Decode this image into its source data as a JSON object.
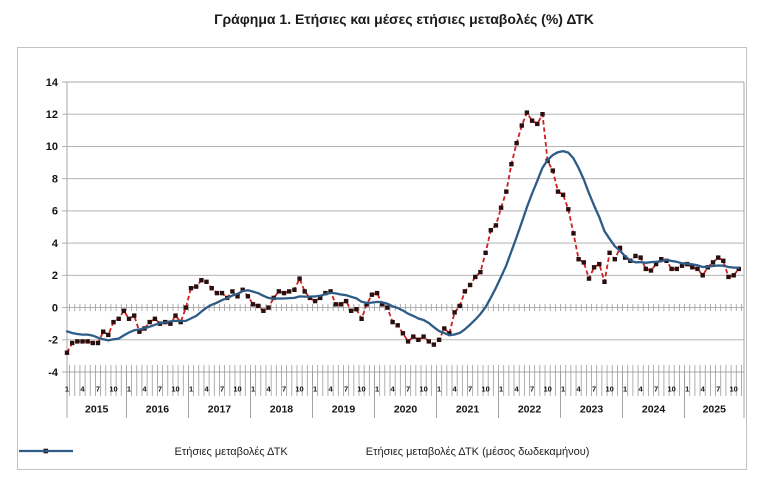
{
  "chart_data": {
    "type": "line",
    "title": "Γράφημα 1. Ετήσιες και μέσες ετήσιες μεταβολές (%) ΔΤΚ",
    "x_start": "2015-01",
    "x_end": "2025-11",
    "years": [
      "2015",
      "2016",
      "2017",
      "2018",
      "2019",
      "2020",
      "2021",
      "2022",
      "2023",
      "2024",
      "2025"
    ],
    "month_tick_labels": [
      "1",
      "4",
      "7",
      "10"
    ],
    "months_per_year": 12,
    "ylim": [
      -4,
      14
    ],
    "ytick_step": 2,
    "grid": true,
    "legend_position": "bottom",
    "series": [
      {
        "name": "Ετήσιες μεταβολές ΔΤΚ",
        "color": "#cf1f1f",
        "line_style": "dashed",
        "marker": "square",
        "marker_color": "#2b0e0e",
        "values": [
          -2.8,
          -2.2,
          -2.1,
          -2.1,
          -2.1,
          -2.2,
          -2.2,
          -1.5,
          -1.7,
          -0.9,
          -0.7,
          -0.2,
          -0.7,
          -0.5,
          -1.5,
          -1.3,
          -0.9,
          -0.7,
          -1.0,
          -0.9,
          -1.0,
          -0.5,
          -0.9,
          0.0,
          1.2,
          1.3,
          1.7,
          1.6,
          1.2,
          0.9,
          0.9,
          0.6,
          1.0,
          0.7,
          1.1,
          0.7,
          0.2,
          0.1,
          -0.2,
          0.0,
          0.6,
          1.0,
          0.9,
          1.0,
          1.1,
          1.8,
          1.0,
          0.6,
          0.4,
          0.6,
          0.9,
          1.0,
          0.2,
          0.2,
          0.4,
          -0.2,
          -0.1,
          -0.7,
          0.2,
          0.8,
          0.9,
          0.2,
          0.0,
          -0.9,
          -1.1,
          -1.6,
          -2.1,
          -1.8,
          -2.0,
          -1.8,
          -2.1,
          -2.3,
          -2.0,
          -1.3,
          -1.6,
          -0.3,
          0.1,
          1.0,
          1.4,
          1.9,
          2.2,
          3.4,
          4.8,
          5.1,
          6.2,
          7.2,
          8.9,
          10.2,
          11.3,
          12.1,
          11.6,
          11.4,
          12.0,
          9.1,
          8.5,
          7.2,
          7.0,
          6.1,
          4.6,
          3.0,
          2.8,
          1.8,
          2.5,
          2.7,
          1.6,
          3.4,
          3.0,
          3.7,
          3.1,
          2.9,
          3.2,
          3.1,
          2.4,
          2.3,
          2.7,
          3.0,
          2.9,
          2.4,
          2.4,
          2.6,
          2.7,
          2.5,
          2.4,
          2.0,
          2.5,
          2.8,
          3.1,
          2.9,
          1.9,
          2.0,
          2.4
        ]
      },
      {
        "name": "Ετήσιες μεταβολές ΔΤΚ (μέσος δωδεκαμήνου)",
        "color": "#2e5c87",
        "line_style": "solid",
        "values": [
          -1.48,
          -1.58,
          -1.64,
          -1.68,
          -1.68,
          -1.74,
          -1.87,
          -1.97,
          -2.04,
          -1.97,
          -1.93,
          -1.73,
          -1.55,
          -1.41,
          -1.36,
          -1.29,
          -1.19,
          -1.07,
          -0.97,
          -0.92,
          -0.86,
          -0.83,
          -0.84,
          -0.83,
          -0.67,
          -0.52,
          -0.25,
          -0.01,
          0.17,
          0.3,
          0.46,
          0.58,
          0.75,
          0.85,
          1.02,
          1.08,
          0.99,
          0.89,
          0.73,
          0.6,
          0.55,
          0.56,
          0.56,
          0.59,
          0.6,
          0.69,
          0.68,
          0.68,
          0.69,
          0.73,
          0.83,
          0.91,
          0.88,
          0.81,
          0.77,
          0.67,
          0.57,
          0.36,
          0.29,
          0.31,
          0.35,
          0.32,
          0.24,
          0.08,
          -0.03,
          -0.18,
          -0.38,
          -0.52,
          -0.68,
          -0.77,
          -0.96,
          -1.22,
          -1.46,
          -1.58,
          -1.72,
          -1.67,
          -1.57,
          -1.35,
          -1.06,
          -0.75,
          -0.4,
          0.03,
          0.61,
          1.22,
          1.91,
          2.62,
          3.49,
          4.37,
          5.3,
          6.23,
          7.08,
          7.87,
          8.68,
          9.16,
          9.47,
          9.64,
          9.71,
          9.62,
          9.26,
          8.66,
          7.95,
          7.09,
          6.33,
          5.61,
          4.74,
          4.27,
          3.81,
          3.52,
          3.19,
          2.92,
          2.81,
          2.82,
          2.78,
          2.82,
          2.84,
          2.87,
          2.97,
          2.89,
          2.84,
          2.75,
          2.72,
          2.68,
          2.62,
          2.52,
          2.53,
          2.58,
          2.61,
          2.6,
          2.52,
          2.48,
          2.48
        ]
      }
    ]
  }
}
